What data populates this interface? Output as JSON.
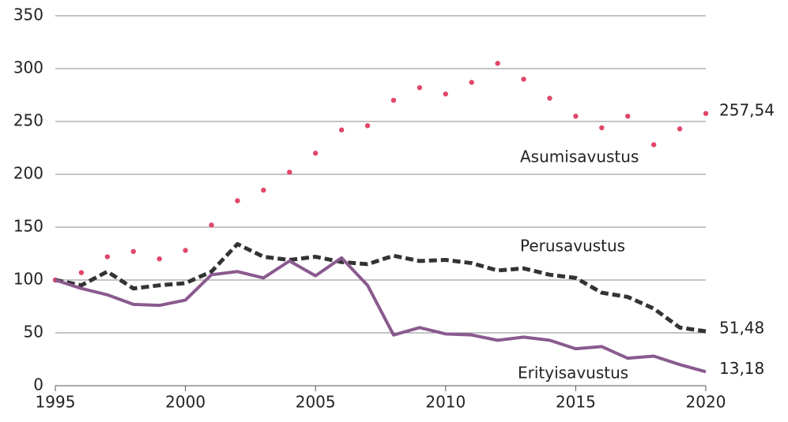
{
  "chart_data": {
    "type": "line",
    "x": [
      1995,
      1996,
      1997,
      1998,
      1999,
      2000,
      2001,
      2002,
      2003,
      2004,
      2005,
      2006,
      2007,
      2008,
      2009,
      2010,
      2011,
      2012,
      2013,
      2014,
      2015,
      2016,
      2017,
      2018,
      2019,
      2020
    ],
    "series": [
      {
        "name": "Asumisavustus",
        "color": "#e0476a",
        "style": "dotted",
        "values": [
          100,
          107,
          122,
          127,
          120,
          128,
          152,
          175,
          185,
          202,
          220,
          242,
          246,
          270,
          282,
          276,
          287,
          305,
          290,
          272,
          255,
          244,
          255,
          228,
          243,
          257.54
        ],
        "value_labels": [
          null,
          null,
          null,
          null,
          null,
          null,
          null,
          null,
          null,
          null,
          null,
          null,
          null,
          null,
          null,
          null,
          null,
          null,
          null,
          null,
          null,
          null,
          null,
          null,
          null,
          "257,54"
        ]
      },
      {
        "name": "Perusavustus",
        "color": "#333333",
        "style": "dashed",
        "values": [
          100,
          95,
          108,
          92,
          95,
          97,
          108,
          134,
          122,
          119,
          122,
          117,
          115,
          123,
          118,
          119,
          116,
          109,
          111,
          105,
          102,
          88,
          84,
          73,
          55,
          51.48
        ],
        "value_labels": [
          null,
          null,
          null,
          null,
          null,
          null,
          null,
          null,
          null,
          null,
          null,
          null,
          null,
          null,
          null,
          null,
          null,
          null,
          null,
          null,
          null,
          null,
          null,
          null,
          null,
          "51,48"
        ]
      },
      {
        "name": "Erityisavustus",
        "color": "#8a5a8f",
        "style": "solid",
        "values": [
          100,
          92,
          86,
          77,
          76,
          81,
          105,
          108,
          102,
          118,
          104,
          121,
          95,
          48,
          55,
          49,
          48,
          43,
          46,
          43,
          35,
          37,
          26,
          28,
          20,
          13.18
        ],
        "value_labels": [
          null,
          null,
          null,
          null,
          null,
          null,
          null,
          null,
          null,
          null,
          null,
          null,
          null,
          null,
          null,
          null,
          null,
          null,
          null,
          null,
          null,
          null,
          null,
          null,
          null,
          "13,18"
        ]
      }
    ],
    "xlim": [
      1995,
      2020
    ],
    "xticks": [
      1995,
      2000,
      2005,
      2010,
      2015,
      2020
    ],
    "ylim": [
      0,
      350
    ],
    "yticks": [
      0,
      50,
      100,
      150,
      200,
      250,
      300,
      350
    ],
    "grid": true
  }
}
